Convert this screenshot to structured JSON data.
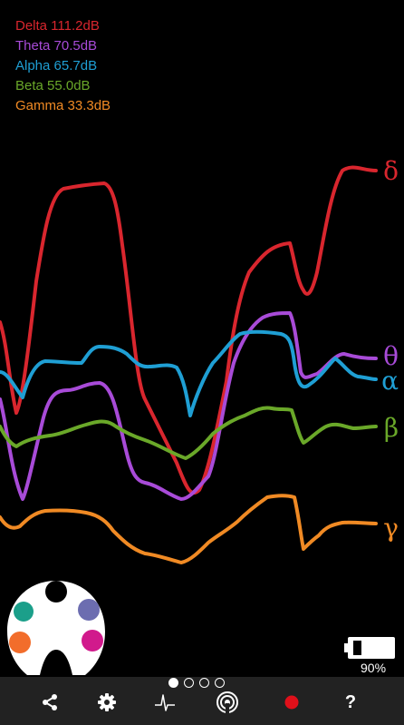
{
  "legend": [
    {
      "label": "Delta 111.2dB",
      "color": "#d9262e"
    },
    {
      "label": "Theta 70.5dB",
      "color": "#a84bd8"
    },
    {
      "label": "Alpha 65.7dB",
      "color": "#1f9fd4"
    },
    {
      "label": "Beta 55.0dB",
      "color": "#6aa829"
    },
    {
      "label": "Gamma 33.3dB",
      "color": "#f08a24"
    }
  ],
  "band_glyphs": {
    "delta": "δ",
    "theta": "θ",
    "alpha": "α",
    "beta": "β",
    "gamma": "γ"
  },
  "battery": {
    "percent_label": "90%",
    "level": 0.9
  },
  "headset_sensors": [
    "#1b9f8a",
    "#f26d2b",
    "#6c6db0",
    "#d11a8c",
    "#000000"
  ],
  "pager": {
    "pages": 4,
    "active": 0
  },
  "toolbar": {
    "items": [
      "share-icon",
      "gear-icon",
      "pulse-icon",
      "broadcast-icon",
      "record-icon",
      "help"
    ],
    "help_label": "?",
    "record_color": "#e0101a"
  }
}
